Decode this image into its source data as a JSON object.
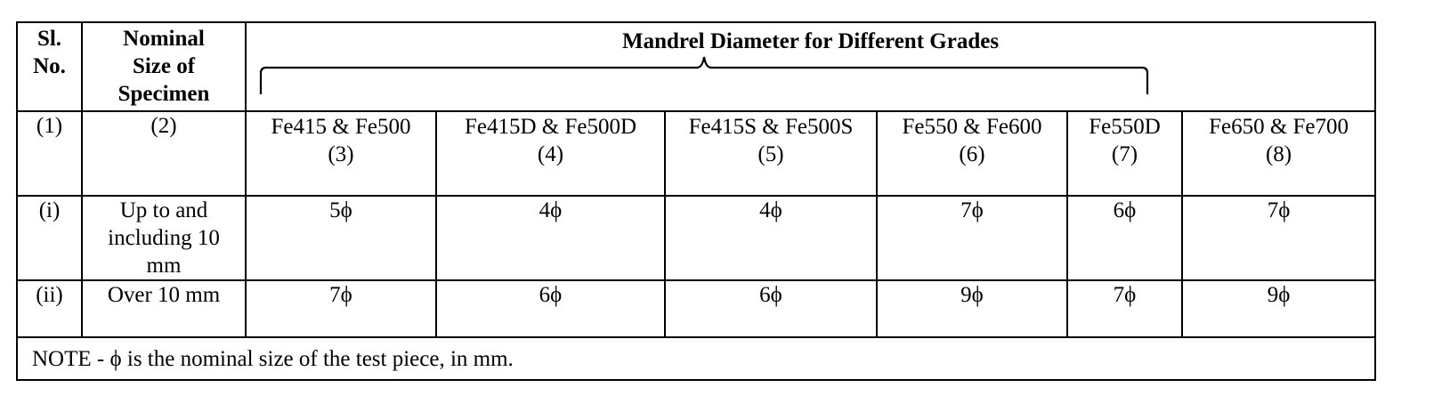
{
  "header": {
    "sl_no_line1": "Sl.",
    "sl_no_line2": "No.",
    "nominal_line1": "Nominal",
    "nominal_line2": "Size of",
    "nominal_line3": "Specimen",
    "mandrel_title": "Mandrel Diameter for Different Grades"
  },
  "subheader": {
    "col1_num": "(1)",
    "col2_num": "(2)",
    "grades": [
      {
        "name": "Fe415 & Fe500",
        "num": "(3)"
      },
      {
        "name": "Fe415D & Fe500D",
        "num": "(4)"
      },
      {
        "name": "Fe415S & Fe500S",
        "num": "(5)"
      },
      {
        "name": "Fe550 & Fe600",
        "num": "(6)"
      },
      {
        "name": "Fe550D",
        "num": "(7)"
      },
      {
        "name": "Fe650 & Fe700",
        "num": "(8)"
      }
    ]
  },
  "rows": [
    {
      "sl": "(i)",
      "size_line1": "Up to and",
      "size_line2": "including 10",
      "size_line3": "mm",
      "values": [
        "5ϕ",
        "4ϕ",
        "4ϕ",
        "7ϕ",
        "6ϕ",
        "7ϕ"
      ]
    },
    {
      "sl": "(ii)",
      "size_line1": "Over 10 mm",
      "values": [
        "7ϕ",
        "6ϕ",
        "6ϕ",
        "9ϕ",
        "7ϕ",
        "9ϕ"
      ]
    }
  ],
  "note": "NOTE - ϕ is the nominal size of the test piece, in mm."
}
